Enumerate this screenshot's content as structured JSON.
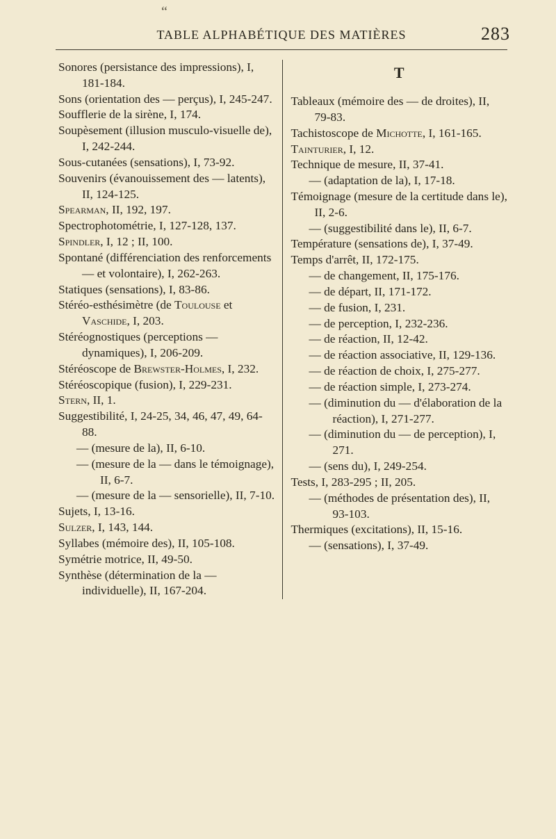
{
  "header": "TABLE ALPHABÉTIQUE DES MATIÈRES",
  "page_number": "283",
  "section_letter": "T",
  "left": [
    {
      "t": "entry",
      "text": "Sonores (persistance des impressions), I, 181-184."
    },
    {
      "t": "entry",
      "text": "Sons (orientation des — perçus), I, 245-247."
    },
    {
      "t": "entry",
      "text": "Soufflerie de la sirène, I, 174."
    },
    {
      "t": "entry",
      "text": "Soupèsement (illusion musculo-visuelle de), I, 242-244."
    },
    {
      "t": "entry",
      "text": "Sous-cutanées (sensations), I, 73-92."
    },
    {
      "t": "entry",
      "text": "Souvenirs (évanouissement des — latents), II, 124-125."
    },
    {
      "t": "entry",
      "html": "<span class='sc'>Spearman</span>, II, 192, 197."
    },
    {
      "t": "entry",
      "text": "Spectrophotométrie, I, 127-128, 137."
    },
    {
      "t": "entry",
      "html": "<span class='sc'>Spindler</span>, I, 12 ; II, 100."
    },
    {
      "t": "entry",
      "text": "Spontané (différenciation des renforcements — et volontaire), I, 262-263."
    },
    {
      "t": "entry",
      "text": "Statiques (sensations), I, 83-86."
    },
    {
      "t": "entry",
      "html": "Stéréo-esthésimètre (de <span class='sc'>Toulouse</span> et <span class='sc'>Vaschide</span>, I, 203."
    },
    {
      "t": "entry",
      "text": "Stéréognostiques (perceptions — dynamiques), I, 206-209."
    },
    {
      "t": "entry",
      "html": "Stéréoscope de <span class='sc'>Brewster-Holmes</span>, I, 232."
    },
    {
      "t": "entry",
      "text": "Stéréoscopique (fusion), I, 229-231."
    },
    {
      "t": "entry",
      "html": "<span class='sc'>Stern</span>, II, 1."
    },
    {
      "t": "entry",
      "text": "Suggestibilité, I, 24-25, 34, 46, 47, 49, 64-88."
    },
    {
      "t": "sub",
      "text": "— (mesure de la), II, 6-10."
    },
    {
      "t": "sub",
      "text": "— (mesure de la — dans le témoignage), II, 6-7."
    },
    {
      "t": "sub",
      "text": "— (mesure de la — sensorielle), II, 7-10."
    },
    {
      "t": "entry",
      "text": "Sujets, I, 13-16."
    },
    {
      "t": "entry",
      "html": "<span class='sc'>Sulzer</span>, I, 143, 144."
    },
    {
      "t": "entry",
      "text": "Syllabes (mémoire des), II, 105-108."
    },
    {
      "t": "entry",
      "text": "Symétrie motrice, II, 49-50."
    },
    {
      "t": "entry",
      "text": "Synthèse (détermination de la — individuelle), II, 167-204."
    }
  ],
  "right": [
    {
      "t": "entry",
      "text": "Tableaux (mémoire des — de droites), II, 79-83."
    },
    {
      "t": "entry",
      "html": "Tachistoscope de <span class='sc'>Michotte</span>, I, 161-165."
    },
    {
      "t": "entry",
      "html": "<span class='sc'>Tainturier</span>, I, 12."
    },
    {
      "t": "entry",
      "text": "Technique de mesure, II, 37-41."
    },
    {
      "t": "sub",
      "text": "— (adaptation de la), I, 17-18."
    },
    {
      "t": "entry",
      "text": "Témoignage (mesure de la certitude dans le), II, 2-6."
    },
    {
      "t": "sub",
      "text": "— (suggestibilité dans le), II, 6-7."
    },
    {
      "t": "entry",
      "text": "Température (sensations de), I, 37-49."
    },
    {
      "t": "entry",
      "text": "Temps d'arrêt, II, 172-175."
    },
    {
      "t": "sub",
      "text": "— de changement, II, 175-176."
    },
    {
      "t": "sub",
      "text": "— de départ, II, 171-172."
    },
    {
      "t": "sub",
      "text": "— de fusion, I, 231."
    },
    {
      "t": "sub",
      "text": "— de perception, I, 232-236."
    },
    {
      "t": "sub",
      "text": "— de réaction, II, 12-42."
    },
    {
      "t": "sub",
      "text": "— de réaction associative, II, 129-136."
    },
    {
      "t": "sub",
      "text": "— de réaction de choix, I, 275-277."
    },
    {
      "t": "sub",
      "text": "— de réaction simple, I, 273-274."
    },
    {
      "t": "sub",
      "text": "— (diminution du — d'élaboration de la réaction), I, 271-277."
    },
    {
      "t": "sub",
      "text": "— (diminution du — de perception), I, 271."
    },
    {
      "t": "sub",
      "text": "— (sens du), I, 249-254."
    },
    {
      "t": "entry",
      "text": "Tests, I, 283-295 ; II, 205."
    },
    {
      "t": "sub",
      "text": "— (méthodes de présentation des), II, 93-103."
    },
    {
      "t": "entry",
      "text": "Thermiques (excitations), II, 15-16."
    },
    {
      "t": "sub",
      "text": "— (sensations), I, 37-49."
    }
  ]
}
